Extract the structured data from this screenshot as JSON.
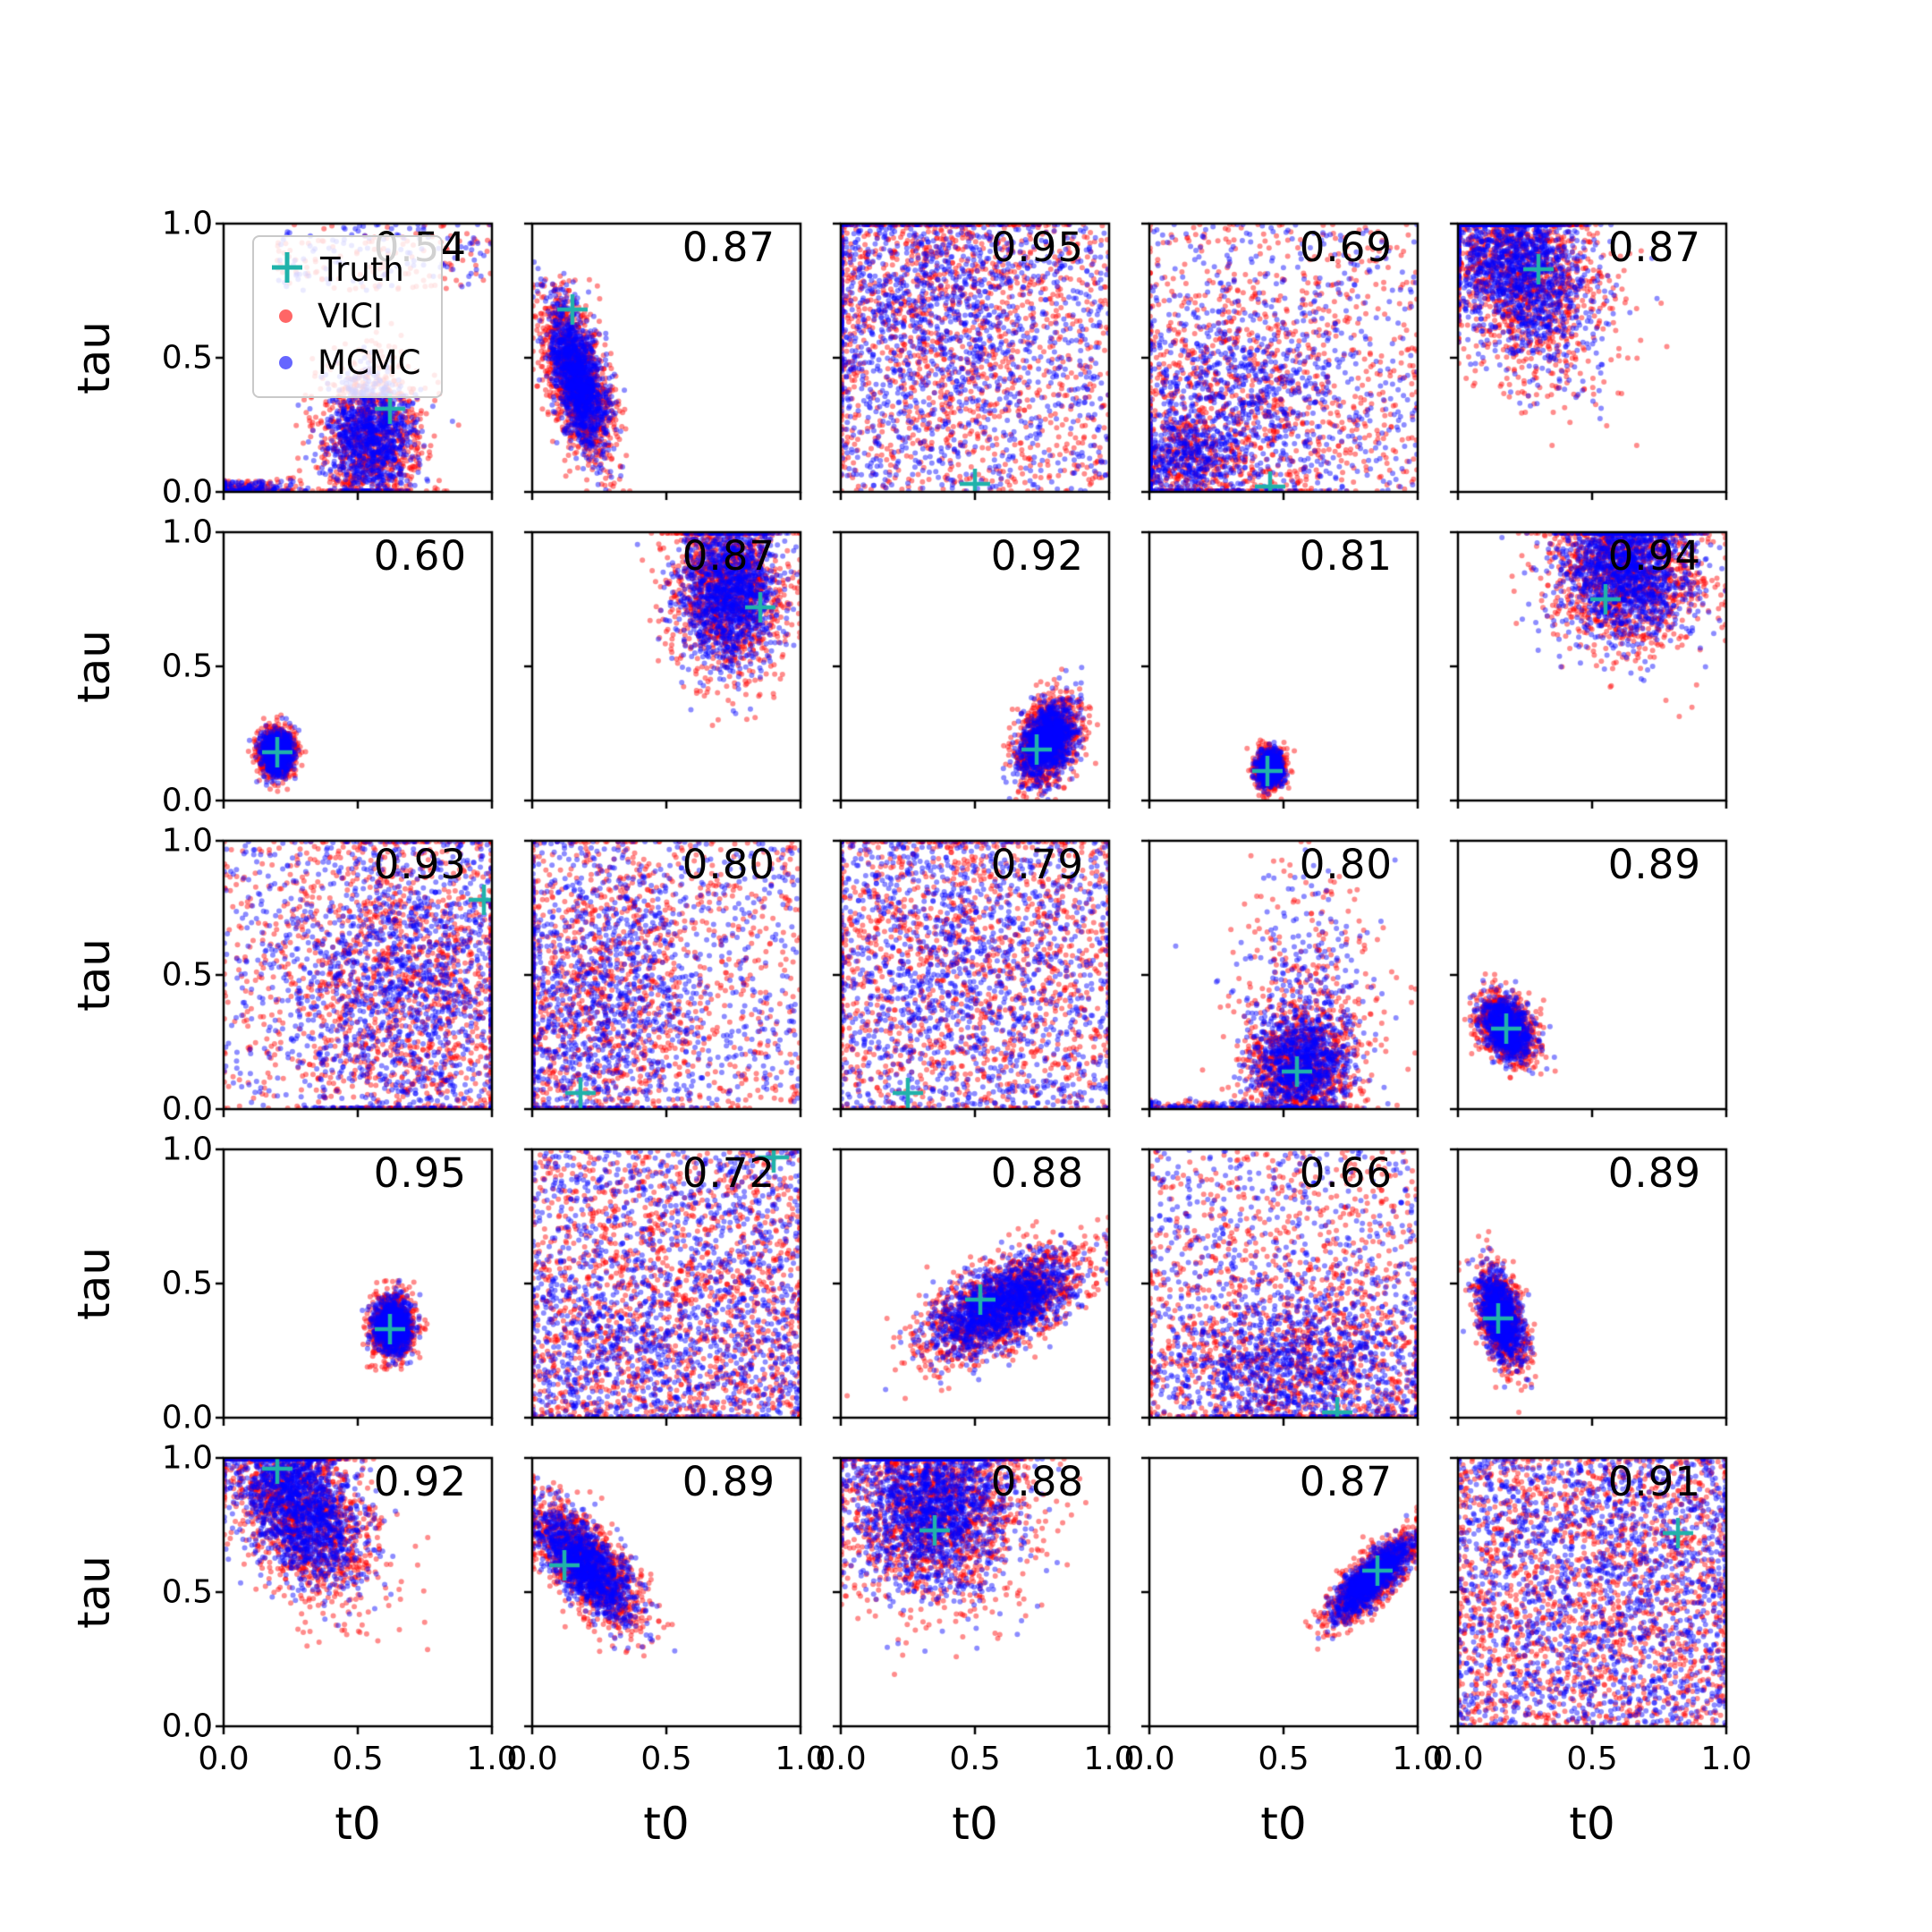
{
  "figure": {
    "x_label": "t0",
    "y_label": "tau",
    "x_ticks": [
      "0.0",
      "0.5",
      "1.0"
    ],
    "y_ticks": [
      "1.0",
      "0.5",
      "0.0"
    ],
    "legend": {
      "items": [
        {
          "label": "Truth",
          "marker": "plus",
          "color": "#20b2aa"
        },
        {
          "label": "VICI",
          "marker": "dot",
          "color": "#ff0000"
        },
        {
          "label": "MCMC",
          "marker": "dot",
          "color": "#0000ff"
        }
      ]
    }
  },
  "chart_data": {
    "type": "scatter",
    "title": "",
    "xlabel": "t0",
    "ylabel": "tau",
    "xlim": [
      0,
      1
    ],
    "ylim": [
      0,
      1
    ],
    "grid": {
      "rows": 5,
      "cols": 5
    },
    "series": [
      {
        "name": "VICI",
        "color": "#ff0000"
      },
      {
        "name": "MCMC",
        "color": "#0000ff"
      }
    ],
    "truth_color": "#20b2aa",
    "panels": [
      {
        "r": 0,
        "c": 0,
        "score": "0.54",
        "truth": [
          0.62,
          0.31
        ],
        "n": 1200,
        "comps": [
          {
            "t": "g",
            "f": 0.78,
            "cx": 0.55,
            "cy": 0.2,
            "sx": 0.08,
            "sy": 0.12,
            "rho": 0
          },
          {
            "t": "g",
            "f": 0.12,
            "cx": 0.08,
            "cy": 0.01,
            "sx": 0.1,
            "sy": 0.015,
            "rho": 0
          },
          {
            "t": "u",
            "f": 0.1,
            "x0": 0.2,
            "x1": 1.0,
            "y0": 0.75,
            "y1": 1.0
          }
        ]
      },
      {
        "r": 0,
        "c": 1,
        "score": "0.87",
        "truth": [
          0.15,
          0.68
        ],
        "n": 1300,
        "comps": [
          {
            "t": "g",
            "f": 1.0,
            "cx": 0.17,
            "cy": 0.42,
            "sx": 0.055,
            "sy": 0.13,
            "rho": -0.55
          }
        ]
      },
      {
        "r": 0,
        "c": 2,
        "score": "0.95",
        "truth": [
          0.5,
          0.03
        ],
        "n": 1500,
        "comps": [
          {
            "t": "u",
            "f": 0.5,
            "x0": 0,
            "x1": 1,
            "y0": 0,
            "y1": 1
          },
          {
            "t": "g",
            "f": 0.5,
            "cx": 0.3,
            "cy": 0.7,
            "sx": 0.28,
            "sy": 0.25,
            "rho": 0
          }
        ]
      },
      {
        "r": 0,
        "c": 3,
        "score": "0.69",
        "truth": [
          0.45,
          0.02
        ],
        "n": 1400,
        "comps": [
          {
            "t": "u",
            "f": 0.3,
            "x0": 0,
            "x1": 1,
            "y0": 0,
            "y1": 1
          },
          {
            "t": "g",
            "f": 0.45,
            "cx": 0.35,
            "cy": 0.35,
            "sx": 0.22,
            "sy": 0.22,
            "rho": 0
          },
          {
            "t": "g",
            "f": 0.25,
            "cx": 0.12,
            "cy": 0.12,
            "sx": 0.12,
            "sy": 0.08,
            "rho": 0
          }
        ]
      },
      {
        "r": 0,
        "c": 4,
        "score": "0.87",
        "truth": [
          0.3,
          0.83
        ],
        "n": 1500,
        "comps": [
          {
            "t": "g",
            "f": 1.0,
            "cx": 0.22,
            "cy": 0.85,
            "sx": 0.14,
            "sy": 0.18,
            "rho": -0.35
          }
        ]
      },
      {
        "r": 1,
        "c": 0,
        "score": "0.60",
        "truth": [
          0.2,
          0.18
        ],
        "n": 900,
        "comps": [
          {
            "t": "g",
            "f": 1.0,
            "cx": 0.2,
            "cy": 0.18,
            "sx": 0.028,
            "sy": 0.038,
            "rho": 0
          }
        ]
      },
      {
        "r": 1,
        "c": 1,
        "score": "0.87",
        "truth": [
          0.85,
          0.72
        ],
        "n": 1300,
        "comps": [
          {
            "t": "g",
            "f": 1.0,
            "cx": 0.73,
            "cy": 0.78,
            "sx": 0.09,
            "sy": 0.14,
            "rho": 0
          }
        ]
      },
      {
        "r": 1,
        "c": 2,
        "score": "0.92",
        "truth": [
          0.73,
          0.19
        ],
        "n": 1100,
        "comps": [
          {
            "t": "g",
            "f": 1.0,
            "cx": 0.77,
            "cy": 0.22,
            "sx": 0.05,
            "sy": 0.07,
            "rho": 0.35
          }
        ]
      },
      {
        "r": 1,
        "c": 3,
        "score": "0.81",
        "truth": [
          0.44,
          0.11
        ],
        "n": 800,
        "comps": [
          {
            "t": "g",
            "f": 1.0,
            "cx": 0.45,
            "cy": 0.12,
            "sx": 0.022,
            "sy": 0.03,
            "rho": 0
          }
        ]
      },
      {
        "r": 1,
        "c": 4,
        "score": "0.94",
        "truth": [
          0.55,
          0.75
        ],
        "n": 1400,
        "comps": [
          {
            "t": "g",
            "f": 1.0,
            "cx": 0.63,
            "cy": 0.85,
            "sx": 0.12,
            "sy": 0.13,
            "rho": 0
          }
        ]
      },
      {
        "r": 2,
        "c": 0,
        "score": "0.93",
        "truth": [
          0.97,
          0.78
        ],
        "n": 1500,
        "comps": [
          {
            "t": "u",
            "f": 0.35,
            "x0": 0,
            "x1": 1,
            "y0": 0,
            "y1": 1
          },
          {
            "t": "g",
            "f": 0.65,
            "cx": 0.68,
            "cy": 0.45,
            "sx": 0.22,
            "sy": 0.28,
            "rho": 0
          }
        ]
      },
      {
        "r": 2,
        "c": 1,
        "score": "0.80",
        "truth": [
          0.18,
          0.06
        ],
        "n": 1400,
        "comps": [
          {
            "t": "u",
            "f": 0.4,
            "x0": 0,
            "x1": 1,
            "y0": 0,
            "y1": 1
          },
          {
            "t": "g",
            "f": 0.6,
            "cx": 0.22,
            "cy": 0.4,
            "sx": 0.22,
            "sy": 0.28,
            "rho": 0
          }
        ]
      },
      {
        "r": 2,
        "c": 2,
        "score": "0.79",
        "truth": [
          0.25,
          0.06
        ],
        "n": 1400,
        "comps": [
          {
            "t": "u",
            "f": 0.55,
            "x0": 0,
            "x1": 1,
            "y0": 0,
            "y1": 1
          },
          {
            "t": "g",
            "f": 0.45,
            "cx": 0.45,
            "cy": 0.55,
            "sx": 0.3,
            "sy": 0.28,
            "rho": 0
          }
        ]
      },
      {
        "r": 2,
        "c": 3,
        "score": "0.80",
        "truth": [
          0.55,
          0.14
        ],
        "n": 1300,
        "comps": [
          {
            "t": "g",
            "f": 0.7,
            "cx": 0.56,
            "cy": 0.16,
            "sx": 0.09,
            "sy": 0.1,
            "rho": 0
          },
          {
            "t": "g",
            "f": 0.22,
            "cx": 0.6,
            "cy": 0.4,
            "sx": 0.13,
            "sy": 0.2,
            "rho": 0
          },
          {
            "t": "g",
            "f": 0.08,
            "cx": 0.2,
            "cy": 0.01,
            "sx": 0.2,
            "sy": 0.012,
            "rho": 0
          }
        ]
      },
      {
        "r": 2,
        "c": 4,
        "score": "0.89",
        "truth": [
          0.18,
          0.3
        ],
        "n": 900,
        "comps": [
          {
            "t": "g",
            "f": 1.0,
            "cx": 0.18,
            "cy": 0.3,
            "sx": 0.045,
            "sy": 0.055,
            "rho": -0.35
          }
        ]
      },
      {
        "r": 3,
        "c": 0,
        "score": "0.95",
        "truth": [
          0.62,
          0.33
        ],
        "n": 900,
        "comps": [
          {
            "t": "g",
            "f": 1.0,
            "cx": 0.63,
            "cy": 0.34,
            "sx": 0.035,
            "sy": 0.05,
            "rho": 0
          }
        ]
      },
      {
        "r": 3,
        "c": 1,
        "score": "0.72",
        "truth": [
          0.9,
          0.97
        ],
        "n": 1600,
        "comps": [
          {
            "t": "u",
            "f": 0.75,
            "x0": 0,
            "x1": 1,
            "y0": 0,
            "y1": 1
          },
          {
            "t": "g",
            "f": 0.25,
            "cx": 0.45,
            "cy": 0.25,
            "sx": 0.3,
            "sy": 0.2,
            "rho": 0
          }
        ]
      },
      {
        "r": 3,
        "c": 2,
        "score": "0.88",
        "truth": [
          0.52,
          0.44
        ],
        "n": 1400,
        "comps": [
          {
            "t": "g",
            "f": 1.0,
            "cx": 0.6,
            "cy": 0.42,
            "sx": 0.13,
            "sy": 0.09,
            "rho": 0.6
          }
        ]
      },
      {
        "r": 3,
        "c": 3,
        "score": "0.66",
        "truth": [
          0.7,
          0.02
        ],
        "n": 1500,
        "comps": [
          {
            "t": "u",
            "f": 0.45,
            "x0": 0,
            "x1": 1,
            "y0": 0,
            "y1": 1
          },
          {
            "t": "g",
            "f": 0.55,
            "cx": 0.55,
            "cy": 0.2,
            "sx": 0.25,
            "sy": 0.16,
            "rho": 0
          }
        ]
      },
      {
        "r": 3,
        "c": 4,
        "score": "0.89",
        "truth": [
          0.15,
          0.37
        ],
        "n": 900,
        "comps": [
          {
            "t": "g",
            "f": 1.0,
            "cx": 0.16,
            "cy": 0.38,
            "sx": 0.04,
            "sy": 0.08,
            "rho": -0.45
          }
        ]
      },
      {
        "r": 4,
        "c": 0,
        "score": "0.92",
        "truth": [
          0.2,
          0.96
        ],
        "n": 1500,
        "comps": [
          {
            "t": "g",
            "f": 1.0,
            "cx": 0.28,
            "cy": 0.82,
            "sx": 0.12,
            "sy": 0.15,
            "rho": -0.45
          }
        ]
      },
      {
        "r": 4,
        "c": 1,
        "score": "0.89",
        "truth": [
          0.12,
          0.6
        ],
        "n": 1200,
        "comps": [
          {
            "t": "g",
            "f": 1.0,
            "cx": 0.2,
            "cy": 0.6,
            "sx": 0.09,
            "sy": 0.1,
            "rho": -0.7
          }
        ]
      },
      {
        "r": 4,
        "c": 2,
        "score": "0.88",
        "truth": [
          0.35,
          0.73
        ],
        "n": 1600,
        "comps": [
          {
            "t": "g",
            "f": 1.0,
            "cx": 0.35,
            "cy": 0.82,
            "sx": 0.15,
            "sy": 0.16,
            "rho": 0
          }
        ]
      },
      {
        "r": 4,
        "c": 3,
        "score": "0.87",
        "truth": [
          0.85,
          0.58
        ],
        "n": 1100,
        "comps": [
          {
            "t": "g",
            "f": 1.0,
            "cx": 0.83,
            "cy": 0.55,
            "sx": 0.07,
            "sy": 0.07,
            "rho": 0.8
          }
        ]
      },
      {
        "r": 4,
        "c": 4,
        "score": "0.91",
        "truth": [
          0.82,
          0.72
        ],
        "n": 1700,
        "comps": [
          {
            "t": "u",
            "f": 0.8,
            "x0": 0,
            "x1": 1,
            "y0": 0,
            "y1": 1
          },
          {
            "t": "g",
            "f": 0.2,
            "cx": 0.5,
            "cy": 0.55,
            "sx": 0.3,
            "sy": 0.25,
            "rho": 0
          }
        ]
      }
    ]
  }
}
